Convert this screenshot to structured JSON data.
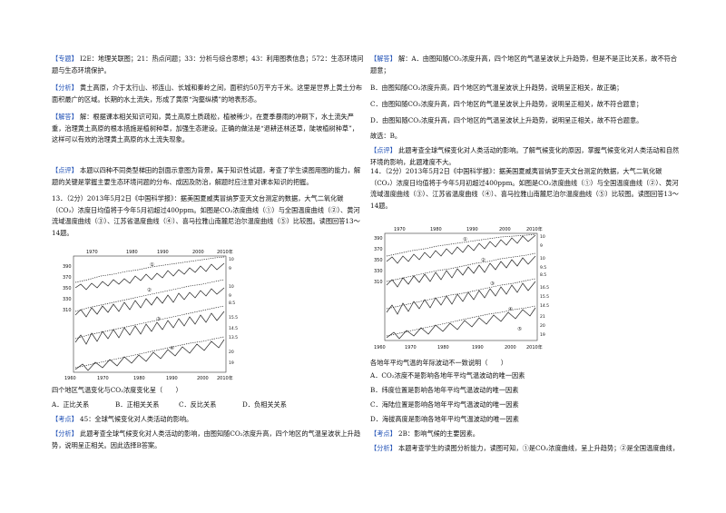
{
  "left": {
    "b1": "【专题】 I2E：地理关联图；21：热点问题；33：分析与综合思想；43：利用图表信息；572：生态环境问题与生态环境保护。",
    "b2": "【分析】 黄土高原，介于太行山、祁连山、长城和秦岭之间，面积约50万平方千米。这里是世界上黄土分布面积最广的区域。长期的水土流失，形成了黄原“沟壑纵横”的地表形态。",
    "b3": "【解答】 解：根据课本相关知识可知，黄土高原土质疏松，植被稀少，在夏季暴雨的冲刷下，水土流失严重，治理黄土高原的根本措施是植树种草，加强生态建设。正确的做法是“退耕还林还草，陡坡植树种草”，这样可以有效的治理黄土高原的水土流失现象。",
    "b4": "故选：C。",
    "b5": "【点评】 本题以四种不同类型梯田的剖面示意图为背景，属于知识性试题，考查了学生读图用图的能力，解题的关键是掌握主要生态环境问题的分布、成因及防治，解题时应注意对课本知识的把握。",
    "q13": "13．（2分）2013年5月2日《中国科学报》：据美国夏威夷冒纳罗亚天文台测定的数据，大气二氧化碳（CO₂）浓度日均值将于今年5月初超过400ppm。如图是CO₂浓度曲线（①）与全国温度曲线（②）、黄河流域温度曲线（③）、江苏省温度曲线（④）、喜马拉雅山南麓尼泊尔温度曲线（⑤）比较图。读图回答13～14题。",
    "q13b": "四个地区气温变化与CO₂浓度变化呈（　　）",
    "optA": "A．正比关系",
    "optB": "B．正相关关系",
    "optC": "C．反比关系",
    "optD": "D．负相关关系",
    "kp": "【考点】 45：全球气候变化对人类活动的影响。",
    "an": "【分析】 此题考查全球气候变化对人类活动的影响，由图知随CO₂浓度升高，四个地区的气温呈波状上升趋势，说明呈正相关。因此选择B答案。"
  },
  "right": {
    "r1": "【解答】 解：A．由图知随CO₂浓度升高，四个地区的气温呈波状上升趋势，但是不是正比关系，故不符合题意；",
    "r2": "B．由图知随CO₂浓度升高，四个地区的气温呈波状上升趋势，说明呈正相关，故正确；",
    "r3": "C．由图知随CO₂浓度升高，四个地区的气温呈波状上升趋势，说明呈正相关，故不符合题意；",
    "r4": "D．由图知随CO₂浓度升高，四个地区的气温呈波状上升趋势，说明呈正相关，故不符合题意。",
    "r5": "故选：B。",
    "r6": "【点评】 此题考查全球气候变化对人类活动的影响。了解气候变化的原因，掌握气候变化对人类活动和自然环境的影响，此题难度不大。",
    "q14": "14．（2分）2013年5月2日《中国科学报》：据美国夏威夷冒纳罗亚天文台测定的数据，大气二氧化碳（CO₂）浓度日均值将于今年5月初超过400ppm。如图是CO₂浓度曲线（①）与全国温度曲线（②）、黄河流域温度曲线（③）、江苏省温度曲线（④）、喜马拉雅山南麓尼泊尔温度曲线（⑤）比较图。读图回答13～14题。",
    "q14b": "各地年平均气温的年际波动不一致说明（　　）",
    "oA": "A．CO₂浓度不是影响各地年平均气温波动的唯一因素",
    "oB": "B．纬度位置是影响各地年平均气温波动的唯一因素",
    "oC": "C．海陆位置是影响各地年平均气温波动的唯一因素",
    "oD": "D．海拔高度是影响各地年平均气温波动的唯一因素",
    "kp": "【考点】 2B：影响气候的主要因素。",
    "an": "【分析】 本题考查学生的读图分析能力，读图可知，①是CO₂浓度曲线，呈上升趋势；②是全国温度曲线，"
  },
  "figure": {
    "years_top": [
      "1960",
      "1970",
      "1980",
      "1990",
      "2000",
      "2010年"
    ],
    "years_bottom": [
      "1960",
      "1970",
      "1980",
      "1990",
      "2000",
      "2010年"
    ],
    "left_axis": [
      "390",
      "370",
      "350",
      "330",
      "310"
    ],
    "ylabel": "CO₂浓度 ppm",
    "circles": [
      "①",
      "②",
      "③",
      "④",
      "⑤"
    ]
  }
}
